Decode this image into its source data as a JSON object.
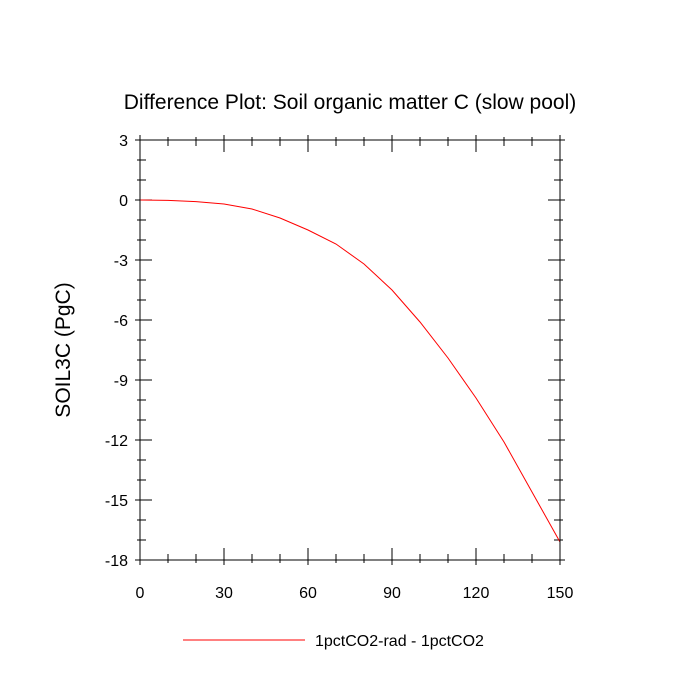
{
  "chart_data": {
    "type": "line",
    "title": "Difference Plot: Soil organic matter C (slow pool)",
    "xlabel": "",
    "ylabel": "SOIL3C  (PgC)",
    "xlim": [
      0,
      150
    ],
    "ylim": [
      -18,
      3
    ],
    "x_ticks": [
      0,
      30,
      60,
      90,
      120,
      150
    ],
    "x_tick_labels": [
      "0",
      "30",
      "60",
      "90",
      "120",
      "150"
    ],
    "y_ticks": [
      3,
      0,
      -3,
      -6,
      -9,
      -12,
      -15,
      -18
    ],
    "y_tick_labels": [
      "3",
      "0",
      "-3",
      "-6",
      "-9",
      "-12",
      "-15",
      "-18"
    ],
    "grid": false,
    "legend_position": "bottom-center",
    "series": [
      {
        "name": "1pctCO2-rad - 1pctCO2",
        "color": "#ff0000",
        "x": [
          0,
          10,
          20,
          30,
          40,
          50,
          60,
          70,
          80,
          90,
          100,
          110,
          120,
          130,
          140,
          150
        ],
        "values": [
          0.0,
          -0.02,
          -0.08,
          -0.2,
          -0.45,
          -0.9,
          -1.5,
          -2.2,
          -3.2,
          -4.5,
          -6.1,
          -7.9,
          -9.9,
          -12.1,
          -14.6,
          -17.1
        ]
      }
    ]
  }
}
